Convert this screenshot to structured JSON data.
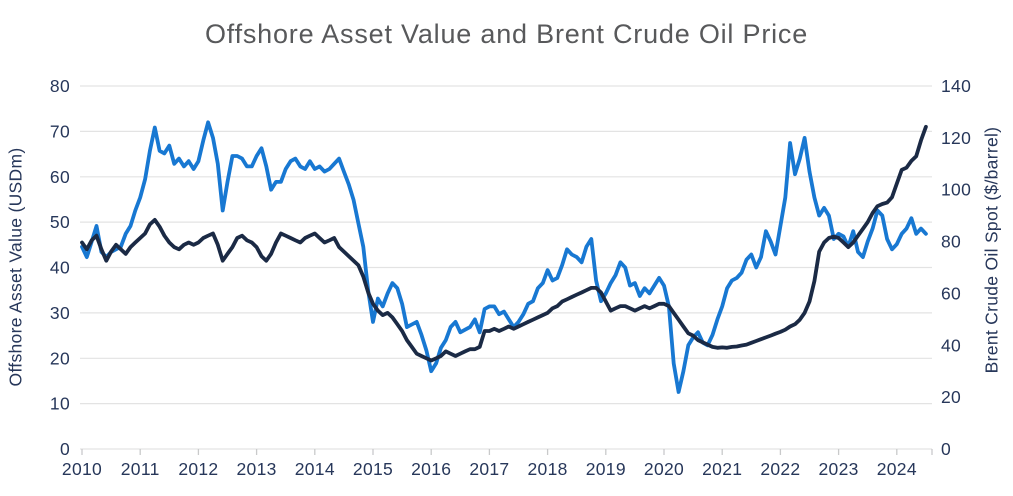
{
  "title": "Offshore Asset Value and Brent Crude Oil Price",
  "colors": {
    "asset": "#1b2a45",
    "brent": "#1878d2",
    "grid": "#e3e3e3",
    "tick_mark": "#c9cacb",
    "axis_text": "#27375a",
    "title_text": "#58595b"
  },
  "chart_data": {
    "type": "line",
    "title": "Offshore Asset Value and Brent Crude Oil Price",
    "x_start_year": 2010,
    "points_per_year": 12,
    "x_tick_labels": [
      "2010",
      "2011",
      "2012",
      "2013",
      "2014",
      "2015",
      "2016",
      "2017",
      "2018",
      "2019",
      "2020",
      "2021",
      "2022",
      "2023",
      "2024"
    ],
    "left_axis": {
      "label": "Offshore Asset Value (USDm)",
      "min": 0,
      "max": 80,
      "ticks": [
        0,
        10,
        20,
        30,
        40,
        50,
        60,
        70,
        80
      ]
    },
    "right_axis": {
      "label": "Brent Crude Oil Spot ($/barrel)",
      "min": 0,
      "max": 140,
      "ticks": [
        0,
        20,
        40,
        60,
        80,
        100,
        120,
        140
      ]
    },
    "grid": "horizontal",
    "legend": "none",
    "series": [
      {
        "name": "Brent Crude Oil Spot ($/barrel)",
        "axis": "right",
        "color_key": "brent",
        "line_id": "brent-line",
        "values": [
          78,
          74,
          80,
          86,
          76,
          74,
          76,
          77,
          78,
          83,
          86,
          92,
          97,
          104,
          115,
          124,
          115,
          114,
          117,
          110,
          112,
          109,
          111,
          108,
          111,
          119,
          126,
          120,
          110,
          92,
          103,
          113,
          113,
          112,
          109,
          109,
          113,
          116,
          109,
          100,
          103,
          103,
          108,
          111,
          112,
          109,
          108,
          111,
          108,
          109,
          107,
          108,
          110,
          112,
          107,
          102,
          96,
          87,
          78,
          61,
          49,
          58,
          55,
          60,
          64,
          62,
          56,
          47,
          48,
          49,
          44,
          38,
          30,
          33,
          39,
          42,
          47,
          49,
          45,
          46,
          47,
          50,
          45,
          54,
          55,
          55,
          52,
          53,
          50,
          47,
          49,
          52,
          56,
          57,
          62,
          64,
          69,
          65,
          66,
          71,
          77,
          75,
          74,
          72,
          78,
          81,
          65,
          57,
          60,
          64,
          67,
          72,
          70,
          63,
          64,
          59,
          62,
          60,
          63,
          66,
          63,
          55,
          33,
          22,
          30,
          40,
          43,
          45,
          41,
          40,
          44,
          50,
          55,
          62,
          65,
          66,
          68,
          73,
          75,
          70,
          74,
          84,
          80,
          75,
          86,
          97,
          118,
          106,
          112,
          120,
          107,
          97,
          90,
          93,
          90,
          81,
          83,
          82,
          78,
          84,
          76,
          74,
          80,
          85,
          92,
          90,
          81,
          77,
          79,
          83,
          85,
          89,
          83,
          85,
          83
        ]
      },
      {
        "name": "Offshore Asset Value (USDm)",
        "axis": "left",
        "color_key": "asset",
        "line_id": "asset-value-line",
        "values": [
          45.5,
          44,
          46,
          47,
          44,
          41.5,
          43.5,
          45,
          44,
          43,
          44.5,
          45.5,
          46.5,
          47.5,
          49.5,
          50.5,
          49,
          47,
          45.5,
          44.5,
          44,
          45,
          45.5,
          45,
          45.5,
          46.5,
          47,
          47.5,
          45,
          41.5,
          43,
          44.5,
          46.5,
          47,
          46,
          45.5,
          44.5,
          42.5,
          41.5,
          43,
          45.5,
          47.5,
          47,
          46.5,
          46,
          45.5,
          46.5,
          47,
          47.5,
          46.5,
          45.5,
          46,
          46.5,
          44.5,
          43.5,
          42.5,
          41.5,
          40.5,
          38,
          34.5,
          32,
          30.5,
          29.5,
          30,
          29,
          27.5,
          26,
          24,
          22.5,
          21,
          20.5,
          20,
          19.5,
          20,
          20.5,
          21.5,
          21,
          20.5,
          21,
          21.5,
          22,
          22,
          22.5,
          26,
          26,
          26.5,
          26,
          26.5,
          27,
          26.5,
          27,
          27.5,
          28,
          28.5,
          29,
          29.5,
          30,
          31,
          31.5,
          32.5,
          33,
          33.5,
          34,
          34.5,
          35,
          35.5,
          35.5,
          34.5,
          32.5,
          30.5,
          31,
          31.5,
          31.5,
          31,
          30.5,
          31,
          31.5,
          31,
          31.5,
          32,
          32,
          31.5,
          30,
          28.5,
          27,
          25.5,
          25,
          24,
          23.5,
          23,
          22.5,
          22.3,
          22.4,
          22.3,
          22.5,
          22.6,
          22.8,
          23,
          23.4,
          23.8,
          24.2,
          24.6,
          25,
          25.4,
          25.8,
          26.3,
          27,
          27.5,
          28.5,
          30,
          32.5,
          37,
          43.5,
          45.5,
          46.5,
          46.8,
          46.5,
          45.5,
          44.5,
          45.5,
          47,
          48.5,
          50,
          52,
          53.5,
          54,
          54.3,
          55.5,
          58.5,
          61.5,
          62,
          63.5,
          64.5,
          68,
          71
        ]
      }
    ]
  }
}
